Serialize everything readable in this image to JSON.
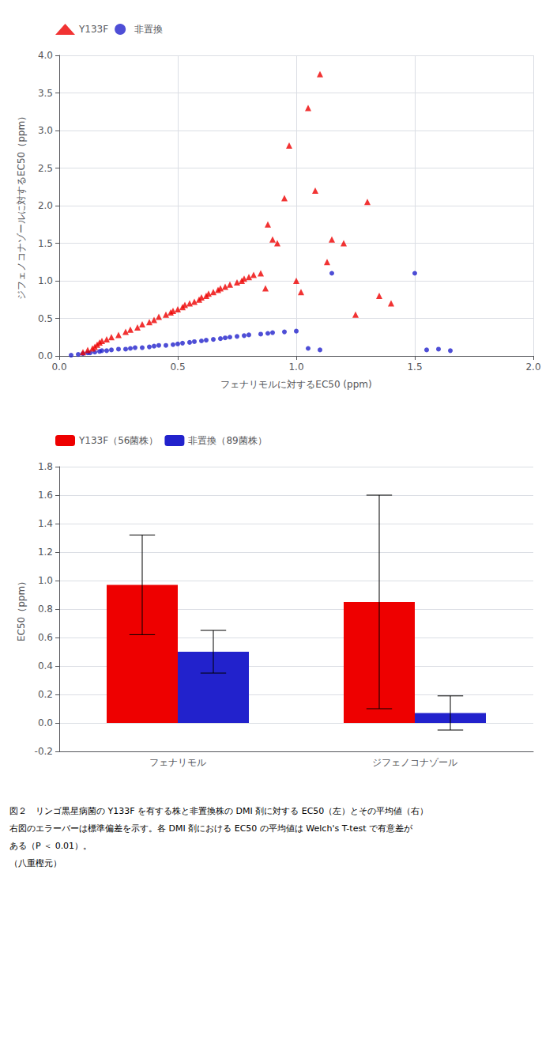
{
  "chart_data": [
    {
      "type": "scatter",
      "xlabel": "フェナリモルに対するEC50 (ppm)",
      "ylabel": "ジフェノコナゾールに対するEC50（ppm）",
      "xlim": [
        0,
        2
      ],
      "xticks": [
        {
          "value": 0,
          "label": "0.0"
        },
        0.5,
        {
          "value": 1,
          "label": "1.0"
        },
        1.5,
        {
          "value": 2,
          "label": "2.0"
        }
      ],
      "ylim": [
        0,
        4
      ],
      "yticks": [
        {
          "value": 0,
          "label": "0.0"
        },
        0.5,
        {
          "value": 1,
          "label": "1.0"
        },
        1.5,
        {
          "value": 2,
          "label": "2.0"
        },
        2.5,
        {
          "value": 3,
          "label": "3.0"
        },
        3.5,
        {
          "value": 4,
          "label": "4.0"
        }
      ],
      "grid": true,
      "legend": "upper left",
      "series": [
        {
          "name": "Y133F",
          "color": "#EE0000",
          "marker": "triangle",
          "x": [
            0.1,
            0.12,
            0.14,
            0.15,
            0.16,
            0.17,
            0.18,
            0.2,
            0.22,
            0.25,
            0.28,
            0.3,
            0.33,
            0.35,
            0.38,
            0.4,
            0.42,
            0.45,
            0.47,
            0.48,
            0.5,
            0.52,
            0.53,
            0.55,
            0.57,
            0.59,
            0.6,
            0.62,
            0.63,
            0.65,
            0.67,
            0.68,
            0.7,
            0.72,
            0.75,
            0.77,
            0.78,
            0.8,
            0.82,
            0.85,
            0.87,
            0.88,
            0.9,
            0.92,
            0.95,
            0.97,
            1.0,
            1.02,
            1.05,
            1.08,
            1.1,
            1.13,
            1.15,
            1.2,
            1.25,
            1.3,
            1.35,
            1.4
          ],
          "values": [
            0.05,
            0.08,
            0.1,
            0.12,
            0.15,
            0.18,
            0.2,
            0.22,
            0.25,
            0.28,
            0.32,
            0.35,
            0.38,
            0.42,
            0.45,
            0.48,
            0.52,
            0.55,
            0.58,
            0.6,
            0.62,
            0.65,
            0.68,
            0.7,
            0.72,
            0.75,
            0.78,
            0.8,
            0.83,
            0.85,
            0.88,
            0.9,
            0.92,
            0.95,
            0.98,
            1.0,
            1.03,
            1.05,
            1.08,
            1.1,
            0.9,
            1.75,
            1.55,
            1.5,
            2.1,
            2.8,
            1.0,
            0.85,
            3.3,
            2.2,
            3.75,
            1.25,
            1.55,
            1.5,
            0.55,
            2.05,
            0.8,
            0.7
          ]
        },
        {
          "name": "非置換",
          "color": "#2222CC",
          "marker": "circle",
          "x": [
            0.05,
            0.08,
            0.1,
            0.12,
            0.13,
            0.15,
            0.17,
            0.18,
            0.2,
            0.22,
            0.25,
            0.28,
            0.3,
            0.32,
            0.35,
            0.38,
            0.4,
            0.42,
            0.45,
            0.48,
            0.5,
            0.52,
            0.55,
            0.57,
            0.6,
            0.62,
            0.65,
            0.68,
            0.7,
            0.72,
            0.75,
            0.78,
            0.8,
            0.85,
            0.88,
            0.9,
            0.95,
            1.0,
            1.05,
            1.1,
            1.15,
            1.5,
            1.55,
            1.6,
            1.65
          ],
          "values": [
            0.01,
            0.02,
            0.03,
            0.04,
            0.04,
            0.05,
            0.06,
            0.07,
            0.07,
            0.08,
            0.09,
            0.09,
            0.1,
            0.11,
            0.11,
            0.12,
            0.13,
            0.14,
            0.14,
            0.15,
            0.16,
            0.17,
            0.18,
            0.19,
            0.2,
            0.21,
            0.22,
            0.23,
            0.24,
            0.25,
            0.26,
            0.27,
            0.28,
            0.29,
            0.3,
            0.31,
            0.32,
            0.33,
            0.1,
            0.08,
            1.1,
            1.1,
            0.08,
            0.09,
            0.07
          ]
        }
      ]
    },
    {
      "type": "bar",
      "categories": [
        "フェナリモル",
        "ジフェノコナゾール"
      ],
      "ylabel": "EC50（ppm）",
      "ylim": [
        -0.2,
        1.8
      ],
      "yticks": [
        -0.2,
        {
          "value": 0,
          "label": "0.0"
        },
        0.2,
        0.4,
        0.6,
        0.8,
        {
          "value": 1,
          "label": "1.0"
        },
        1.2,
        1.4,
        1.6,
        1.8
      ],
      "grid": "y",
      "legend": "upper left",
      "series": [
        {
          "name": "Y133F（56菌株）",
          "color": "#EE0000",
          "values": [
            0.97,
            0.85
          ],
          "errors": [
            0.35,
            0.75
          ]
        },
        {
          "name": "非置換（89菌株）",
          "color": "#2222CC",
          "values": [
            0.5,
            0.07
          ],
          "errors": [
            0.15,
            0.12
          ]
        }
      ],
      "annotations": [
        "図２　リンゴ黒星病菌の Y133F を有する株と非置換株の DMI 剤に対する EC50（左）とその平均値（右）",
        "右図のエラーバーは標準偏差を示す。各 DMI 剤における EC50 の平均値は Welch's T-test で有意差が",
        "ある（P ＜ 0.01）。",
        "（八重樫元）"
      ]
    }
  ]
}
